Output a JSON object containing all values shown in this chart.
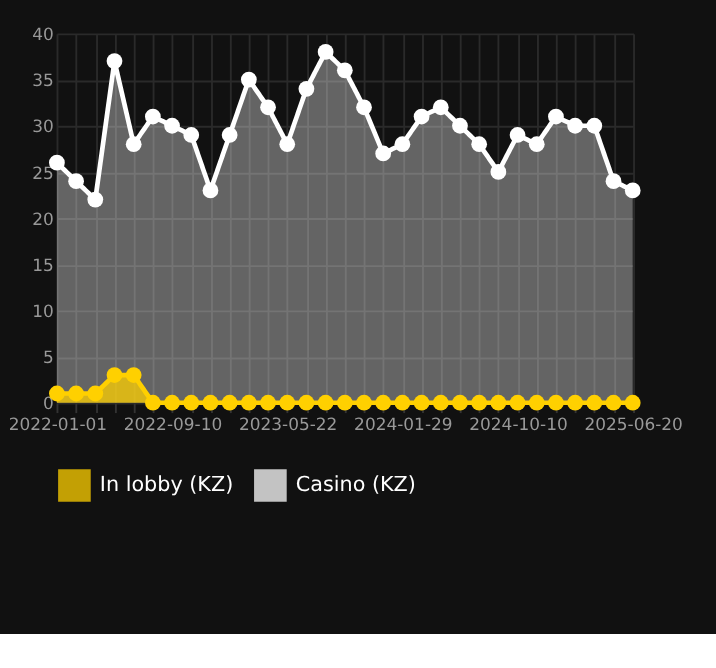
{
  "chart_data": {
    "type": "area",
    "categories": [
      "2022-01-01",
      null,
      null,
      null,
      null,
      null,
      "2022-09-10",
      null,
      null,
      null,
      null,
      null,
      "2023-05-22",
      null,
      null,
      null,
      null,
      null,
      "2024-01-29",
      null,
      null,
      null,
      null,
      null,
      "2024-10-10",
      null,
      null,
      null,
      null,
      null,
      "2025-06-20"
    ],
    "series": [
      {
        "name": "In lobby (KZ)",
        "color": "#ffd000",
        "values": [
          1,
          1,
          1,
          3,
          3,
          0,
          0,
          0,
          0,
          0,
          0,
          0,
          0,
          0,
          0,
          0,
          0,
          0,
          0,
          0,
          0,
          0,
          0,
          0,
          0,
          0,
          0,
          0,
          0,
          0,
          0
        ]
      },
      {
        "name": "Casino (KZ)",
        "color": "#ffffff",
        "values": [
          26,
          24,
          22,
          37,
          28,
          31,
          30,
          29,
          23,
          29,
          35,
          32,
          28,
          34,
          38,
          36,
          32,
          27,
          28,
          31,
          32,
          30,
          28,
          25,
          29,
          28,
          31,
          30,
          30,
          24,
          23
        ]
      }
    ],
    "ylim": [
      0,
      40
    ],
    "yticks": [
      0,
      5,
      10,
      15,
      20,
      25,
      30,
      35,
      40
    ],
    "grid": true,
    "legend": "bottom",
    "marker": "circle",
    "line_style": "solid"
  }
}
